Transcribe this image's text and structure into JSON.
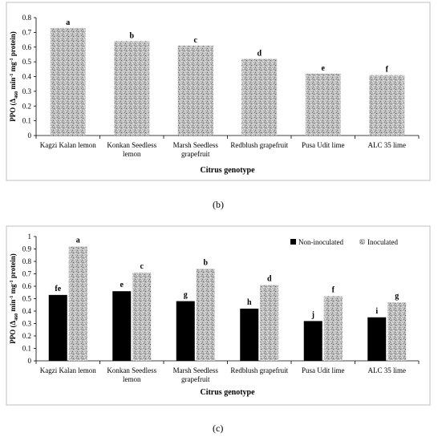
{
  "chart_data": [
    {
      "type": "bar",
      "ylabel_main": "PPO (Δ",
      "ylabel_sub1": "460",
      "ylabel_mid": " min",
      "ylabel_sup1": "-1",
      "ylabel_mid2": " mg",
      "ylabel_sup2": "-1",
      "ylabel_end": " protein)",
      "xlabel": "Citrus genotype",
      "ylim": [
        0,
        0.8
      ],
      "yticks": [
        "0",
        "0.1",
        "0.2",
        "0.3",
        "0.4",
        "0.5",
        "0.6",
        "0.7",
        "0.8"
      ],
      "categories": [
        [
          "Kagzi Kalan lemon"
        ],
        [
          "Konkan Seedless",
          "lemon"
        ],
        [
          "Marsh Seedless",
          "grapefruit"
        ],
        [
          "Redblush grapefruit"
        ],
        [
          "Pusa Udit lime"
        ],
        [
          "ALC 35 lime"
        ]
      ],
      "values": [
        0.73,
        0.64,
        0.61,
        0.52,
        0.42,
        0.41
      ],
      "letters": [
        "a",
        "b",
        "c",
        "d",
        "e",
        "f"
      ],
      "bar_color": "#a8a8a8",
      "panel_label": "(b)"
    },
    {
      "type": "bar",
      "ylabel_main": "PPO (Δ",
      "ylabel_sub1": "460",
      "ylabel_mid": " min",
      "ylabel_sup1": "-1",
      "ylabel_mid2": " mg",
      "ylabel_sup2": "-1",
      "ylabel_end": " protein)",
      "xlabel": "Citrus genotype",
      "ylim": [
        0,
        1
      ],
      "yticks": [
        "0",
        "0.1",
        "0.2",
        "0.3",
        "0.4",
        "0.5",
        "0.6",
        "0.7",
        "0.8",
        "0.9",
        "1"
      ],
      "categories": [
        [
          "Kagzi Kalan lemon"
        ],
        [
          "Konkan Seedless",
          "lemon"
        ],
        [
          "Marsh Seedless",
          "grapefruit"
        ],
        [
          "Redblush grapefruit"
        ],
        [
          "Pusa Udit lime"
        ],
        [
          "ALC 35 lime"
        ]
      ],
      "series": [
        {
          "name": "Non-inoculated",
          "color": "#000000",
          "values": [
            0.53,
            0.56,
            0.48,
            0.42,
            0.32,
            0.35
          ],
          "letters": [
            "fe",
            "e",
            "g",
            "h",
            "j",
            "i"
          ]
        },
        {
          "name": "Inoculated",
          "color": "#a8a8a8",
          "values": [
            0.92,
            0.71,
            0.74,
            0.61,
            0.52,
            0.47
          ],
          "letters": [
            "a",
            "c",
            "b",
            "d",
            "f",
            "g"
          ]
        }
      ],
      "legend_position": "top-right",
      "panel_label": "(c)"
    }
  ]
}
